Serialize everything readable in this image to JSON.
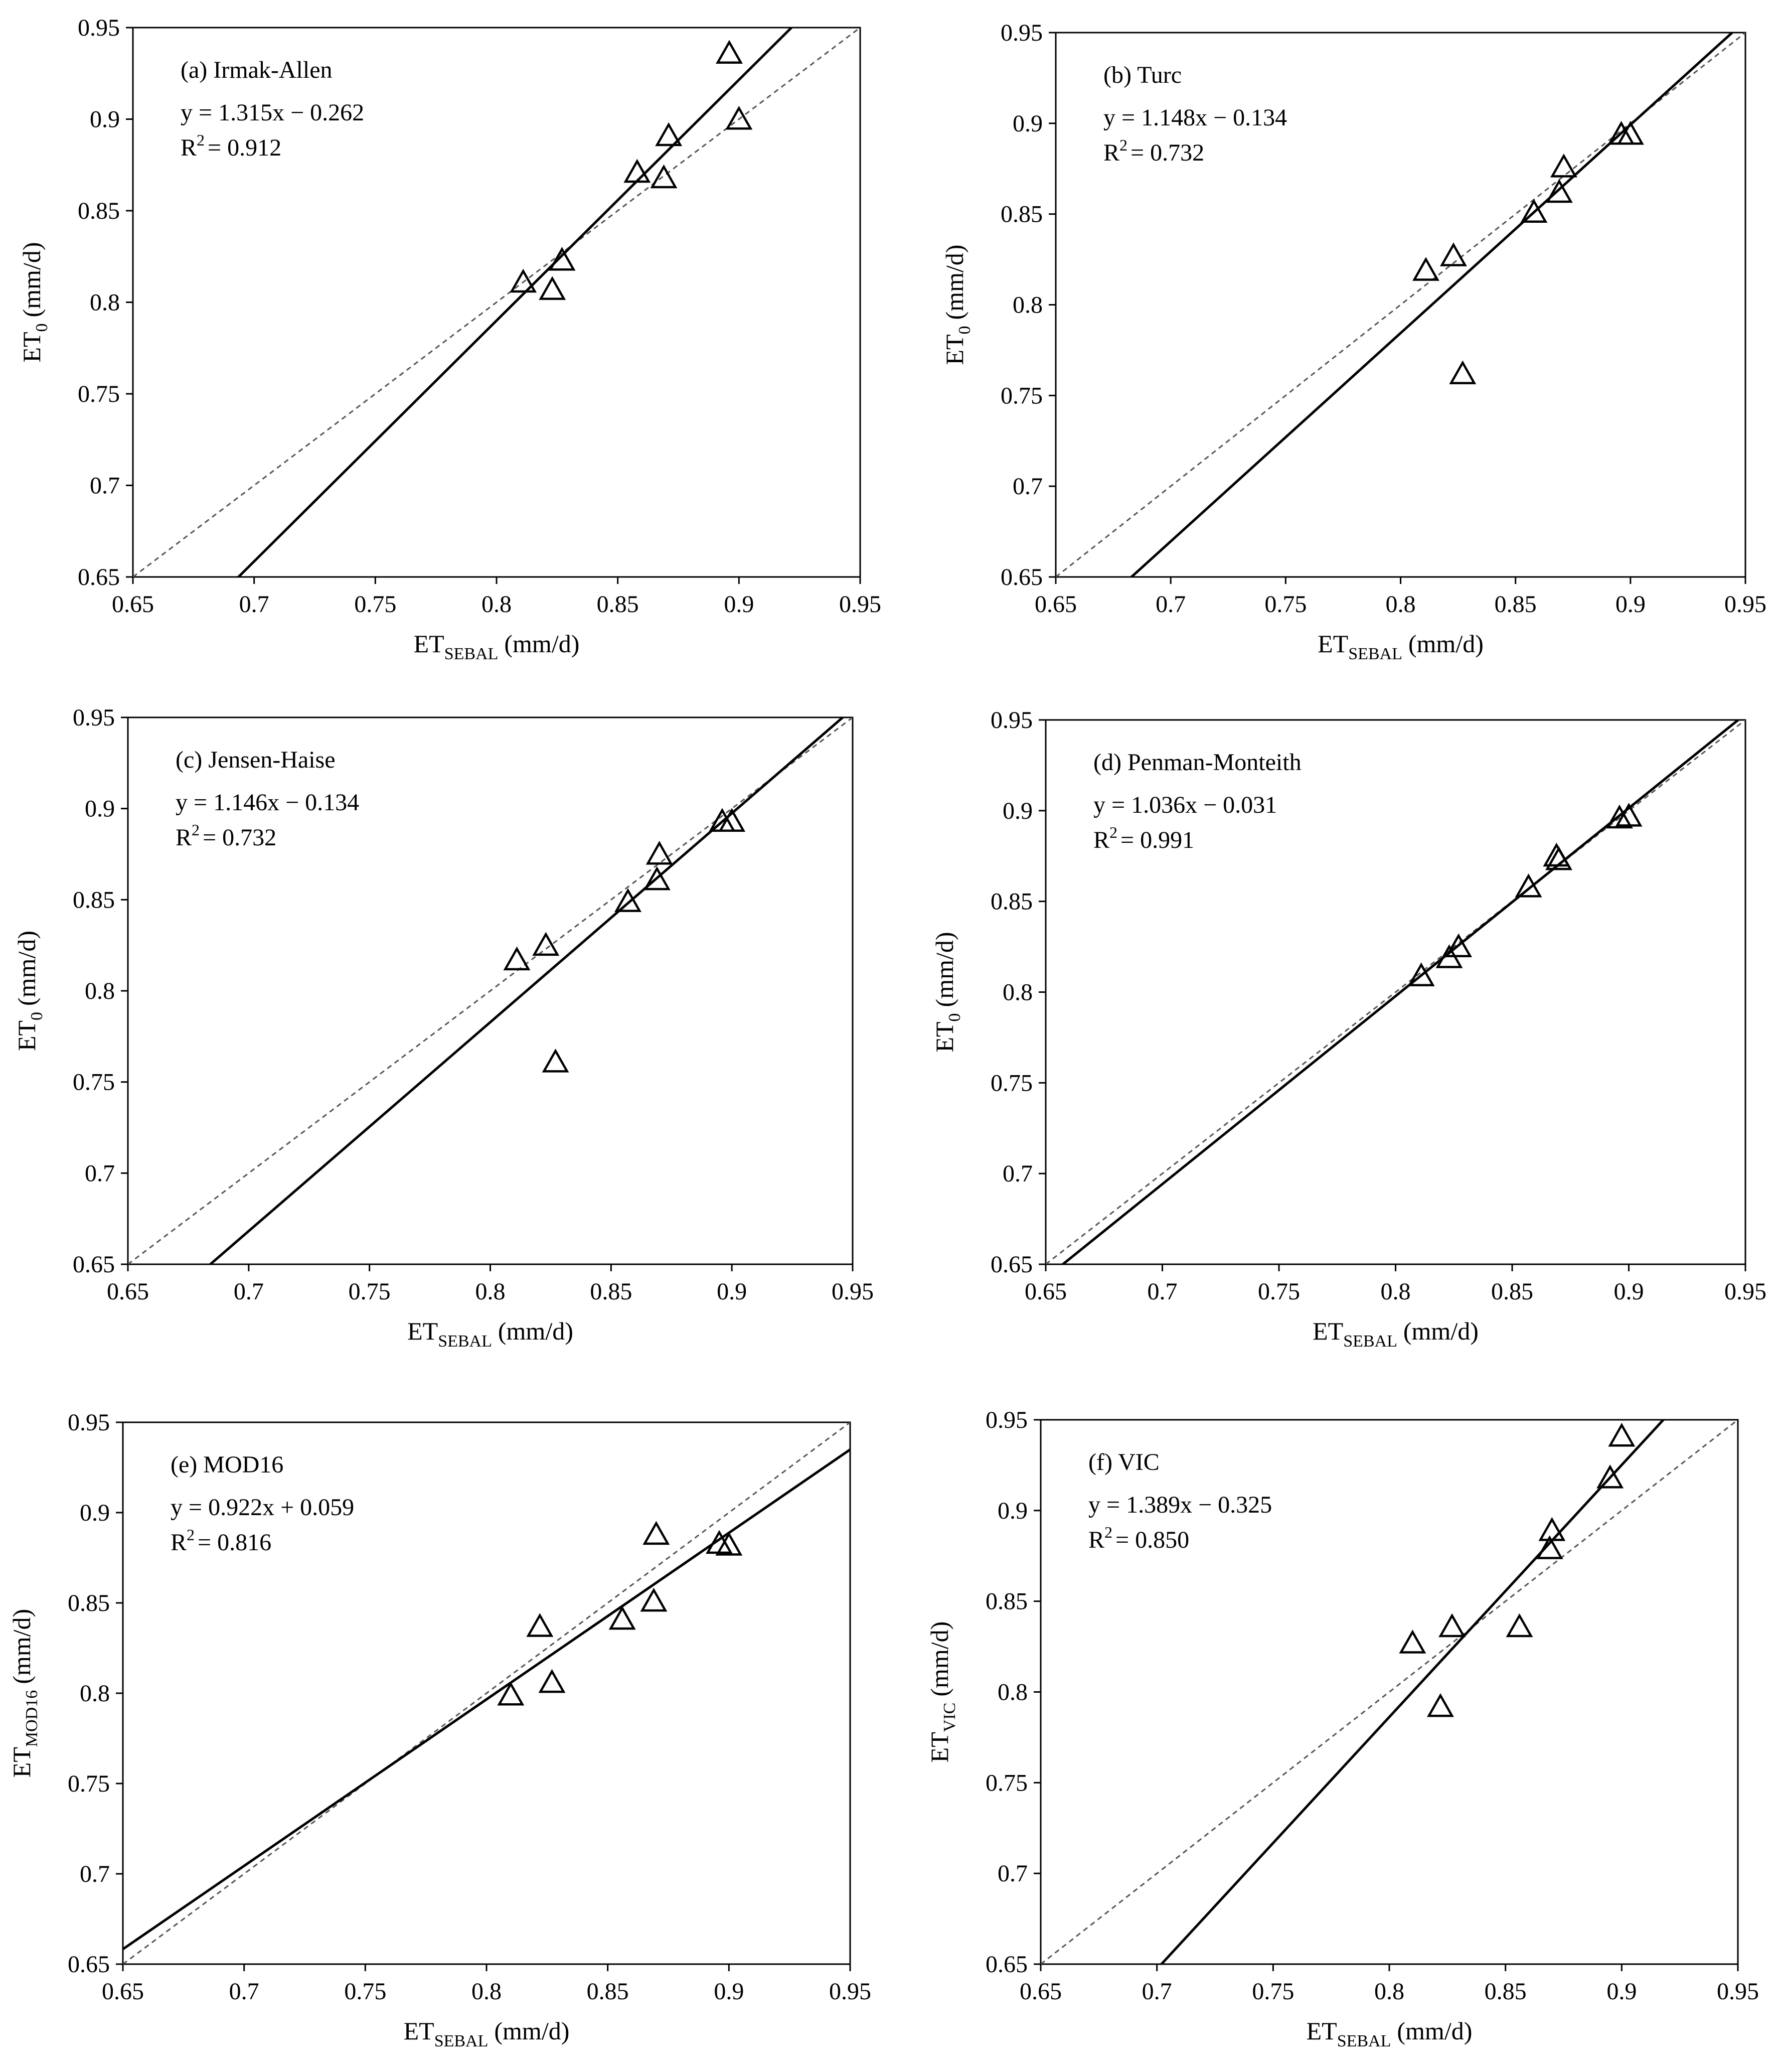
{
  "chart_data": [
    {
      "type": "scatter",
      "title": "(a) Irmak-Allen",
      "equation": "y = 1.315x − 0.262",
      "r2_label": "R",
      "r2_sup": "2",
      "r2_value": "= 0.912",
      "slope": 1.315,
      "intercept": -0.262,
      "xlabel": "ET",
      "xsub": "SEBAL",
      "xunit": "(mm/d)",
      "ylabel": "ET",
      "ysub": "0",
      "yunit": "(mm/d)",
      "xlim": [
        0.65,
        0.95
      ],
      "ylim": [
        0.65,
        0.95
      ],
      "x": [
        0.811,
        0.823,
        0.827,
        0.858,
        0.869,
        0.871,
        0.896,
        0.9
      ],
      "y": [
        0.811,
        0.807,
        0.823,
        0.871,
        0.868,
        0.891,
        0.936,
        0.9
      ]
    },
    {
      "type": "scatter",
      "title": "(b) Turc",
      "equation": "y = 1.148x − 0.134",
      "r2_label": "R",
      "r2_sup": "2",
      "r2_value": "= 0.732",
      "slope": 1.148,
      "intercept": -0.134,
      "xlabel": "ET",
      "xsub": "SEBAL",
      "xunit": "(mm/d)",
      "ylabel": "ET",
      "ysub": "0",
      "yunit": "(mm/d)",
      "xlim": [
        0.65,
        0.95
      ],
      "ylim": [
        0.65,
        0.95
      ],
      "x": [
        0.811,
        0.823,
        0.827,
        0.858,
        0.869,
        0.871,
        0.896,
        0.9
      ],
      "y": [
        0.819,
        0.827,
        0.762,
        0.851,
        0.862,
        0.876,
        0.894,
        0.894
      ]
    },
    {
      "type": "scatter",
      "title": "(c) Jensen-Haise",
      "equation": "y = 1.146x − 0.134",
      "r2_label": "R",
      "r2_sup": "2",
      "r2_value": "= 0.732",
      "slope": 1.146,
      "intercept": -0.134,
      "xlabel": "ET",
      "xsub": "SEBAL",
      "xunit": "(mm/d)",
      "ylabel": "ET",
      "ysub": "0",
      "yunit": "(mm/d)",
      "xlim": [
        0.65,
        0.95
      ],
      "ylim": [
        0.65,
        0.95
      ],
      "x": [
        0.811,
        0.823,
        0.827,
        0.857,
        0.869,
        0.87,
        0.896,
        0.9
      ],
      "y": [
        0.817,
        0.825,
        0.761,
        0.849,
        0.861,
        0.875,
        0.893,
        0.893
      ]
    },
    {
      "type": "scatter",
      "title": "(d) Penman-Monteith",
      "equation": "y = 1.036x − 0.031",
      "r2_label": "R",
      "r2_sup": "2",
      "r2_value": "= 0.991",
      "slope": 1.036,
      "intercept": -0.031,
      "xlabel": "ET",
      "xsub": "SEBAL",
      "xunit": "(mm/d)",
      "ylabel": "ET",
      "ysub": "0",
      "yunit": "(mm/d)",
      "xlim": [
        0.65,
        0.95
      ],
      "ylim": [
        0.65,
        0.95
      ],
      "x": [
        0.811,
        0.823,
        0.827,
        0.857,
        0.869,
        0.87,
        0.896,
        0.9
      ],
      "y": [
        0.809,
        0.819,
        0.825,
        0.858,
        0.875,
        0.873,
        0.896,
        0.897
      ]
    },
    {
      "type": "scatter",
      "title": "(e) MOD16",
      "equation": "y = 0.922x + 0.059",
      "r2_label": "R",
      "r2_sup": "2",
      "r2_value": "= 0.816",
      "slope": 0.922,
      "intercept": 0.059,
      "xlabel": "ET",
      "xsub": "SEBAL",
      "xunit": "(mm/d)",
      "ylabel": "ET",
      "ysub": "MOD16",
      "yunit": "(mm/d)",
      "xlim": [
        0.65,
        0.95
      ],
      "ylim": [
        0.65,
        0.95
      ],
      "x": [
        0.81,
        0.822,
        0.827,
        0.856,
        0.869,
        0.87,
        0.896,
        0.9
      ],
      "y": [
        0.799,
        0.837,
        0.806,
        0.841,
        0.851,
        0.888,
        0.883,
        0.882
      ]
    },
    {
      "type": "scatter",
      "title": "(f) VIC",
      "equation": "y = 1.389x − 0.325",
      "r2_label": "R",
      "r2_sup": "2",
      "r2_value": "= 0.850",
      "slope": 1.389,
      "intercept": -0.325,
      "xlabel": "ET",
      "xsub": "SEBAL",
      "xunit": "(mm/d)",
      "ylabel": "ET",
      "ysub": "VIC",
      "yunit": "(mm/d)",
      "xlim": [
        0.65,
        0.95
      ],
      "ylim": [
        0.65,
        0.95
      ],
      "x": [
        0.81,
        0.822,
        0.827,
        0.856,
        0.869,
        0.87,
        0.895,
        0.9
      ],
      "y": [
        0.827,
        0.792,
        0.836,
        0.836,
        0.879,
        0.889,
        0.918,
        0.941
      ]
    }
  ],
  "ticks": [
    "0.65",
    "0.7",
    "0.75",
    "0.8",
    "0.85",
    "0.9",
    "0.95"
  ]
}
